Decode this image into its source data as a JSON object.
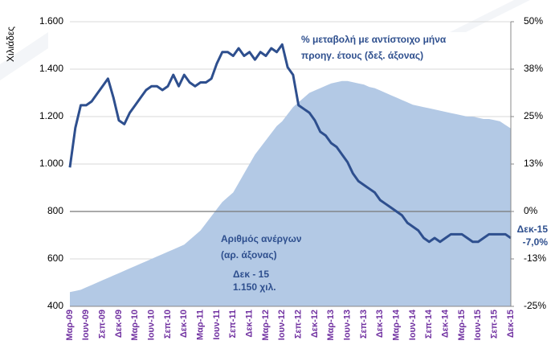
{
  "chart_data": {
    "type": "combo",
    "y_label": "Χιλιάδες",
    "categories": [
      "Μαρ-09",
      null,
      null,
      "Ιουν-09",
      null,
      null,
      "Σεπ-09",
      null,
      null,
      "Δεκ-09",
      null,
      null,
      "Μαρ-10",
      null,
      null,
      "Ιουν-10",
      null,
      null,
      "Σεπ-10",
      null,
      null,
      "Δεκ-10",
      null,
      null,
      "Μαρ-11",
      null,
      null,
      "Ιουν-11",
      null,
      null,
      "Σεπ-11",
      null,
      null,
      "Δεκ-11",
      null,
      null,
      "Μαρ-12",
      null,
      null,
      "Ιουν-12",
      null,
      null,
      "Σεπ-12",
      null,
      null,
      "Δεκ-12",
      null,
      null,
      "Μαρ-13",
      null,
      null,
      "Ιουν-13",
      null,
      null,
      "Σεπ-13",
      null,
      null,
      "Δεκ-13",
      null,
      null,
      "Μαρ-14",
      null,
      null,
      "Ιουν-14",
      null,
      null,
      "Σεπ-14",
      null,
      null,
      "Δεκ-14",
      null,
      null,
      "Μαρ-15",
      null,
      null,
      "Ιουν-15",
      null,
      null,
      "Σεπ-15",
      null,
      null,
      "Δεκ-15"
    ],
    "series": [
      {
        "name": "Αριθμός ανέργων",
        "type": "area",
        "color": "#b3c9e5",
        "axis": "y",
        "values": [
          460,
          465,
          470,
          480,
          490,
          500,
          510,
          520,
          530,
          540,
          550,
          560,
          570,
          580,
          590,
          600,
          610,
          620,
          630,
          640,
          650,
          660,
          680,
          700,
          720,
          750,
          780,
          810,
          840,
          860,
          880,
          920,
          960,
          1000,
          1040,
          1070,
          1100,
          1130,
          1160,
          1180,
          1210,
          1240,
          1260,
          1280,
          1300,
          1310,
          1320,
          1330,
          1340,
          1345,
          1350,
          1350,
          1345,
          1340,
          1335,
          1325,
          1320,
          1310,
          1300,
          1290,
          1280,
          1270,
          1260,
          1250,
          1245,
          1240,
          1235,
          1230,
          1225,
          1220,
          1215,
          1210,
          1205,
          1200,
          1200,
          1195,
          1190,
          1190,
          1185,
          1180,
          1165,
          1150
        ]
      },
      {
        "name": "% μεταβολή",
        "type": "line",
        "color": "#2e4f8e",
        "axis": "y2",
        "values": [
          11.6,
          22,
          28,
          28,
          29,
          31,
          33,
          35,
          30,
          24,
          23,
          26,
          28,
          30,
          32,
          33,
          33,
          32,
          33,
          36,
          33,
          36,
          34,
          33,
          34,
          34,
          35,
          39,
          42,
          42,
          41,
          43,
          41,
          42,
          40,
          42,
          41,
          43,
          42,
          44,
          38,
          36,
          28,
          27,
          26,
          24,
          21,
          20,
          18,
          17,
          15,
          13,
          10,
          8,
          7,
          6,
          5,
          3,
          2,
          1,
          0,
          -1,
          -3,
          -4,
          -5,
          -7,
          -8,
          -7,
          -8,
          -7,
          -6,
          -6,
          -6,
          -7,
          -8,
          -8,
          -7,
          -6,
          -6,
          -6,
          -6,
          -7.0
        ]
      }
    ],
    "ylim": [
      400,
      1600
    ],
    "yticks": [
      400,
      600,
      800,
      {
        "value": 1000,
        "label": "1.000"
      },
      {
        "value": 1200,
        "label": "1.200"
      },
      {
        "value": 1400,
        "label": "1.400"
      },
      {
        "value": 1600,
        "label": "1.600"
      }
    ],
    "y2lim": [
      -25,
      50
    ],
    "y2ticks": [
      {
        "value": -25,
        "label": "-25%"
      },
      {
        "value": -12.5,
        "label": "-13%"
      },
      {
        "value": 0,
        "label": "0%"
      },
      {
        "value": 12.5,
        "label": "13%"
      },
      {
        "value": 25,
        "label": "25%"
      },
      {
        "value": 37.5,
        "label": "38%"
      },
      {
        "value": 50,
        "label": "50%"
      }
    ],
    "grid": true,
    "annotations": [
      "% μεταβολή με αντίστοιχο μήνα",
      "προηγ. έτους (δεξ. άξονας)",
      "Αριθμός ανέργων",
      "(αρ. άξονας)",
      "Δεκ - 15",
      "1.150 χιλ.",
      "Δεκ-15",
      "-7,0%"
    ]
  }
}
